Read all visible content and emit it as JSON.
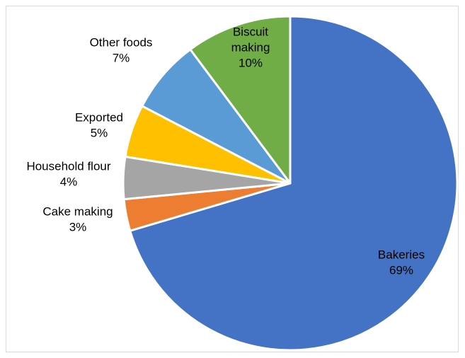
{
  "chart_data": {
    "type": "pie",
    "title": "",
    "start_angle_deg": 0,
    "direction": "clockwise",
    "slices": [
      {
        "label_lines": [
          "Bakeries"
        ],
        "value": 69,
        "value_text": "69%",
        "color": "#4472c4",
        "label_color": "#000000"
      },
      {
        "label_lines": [
          "Cake making"
        ],
        "value": 3,
        "value_text": "3%",
        "color": "#ed7d31",
        "label_color": "#000000"
      },
      {
        "label_lines": [
          "Household flour"
        ],
        "value": 4,
        "value_text": "4%",
        "color": "#a5a5a5",
        "label_color": "#000000"
      },
      {
        "label_lines": [
          "Exported"
        ],
        "value": 5,
        "value_text": "5%",
        "color": "#ffc000",
        "label_color": "#000000"
      },
      {
        "label_lines": [
          "Other foods"
        ],
        "value": 7,
        "value_text": "7%",
        "color": "#5b9bd5",
        "label_color": "#000000"
      },
      {
        "label_lines": [
          "Biscuit",
          "making"
        ],
        "value": 10,
        "value_text": "10%",
        "color": "#70ad47",
        "label_color": "#000000"
      }
    ],
    "legend": "none",
    "labels": "category name and percentage"
  }
}
